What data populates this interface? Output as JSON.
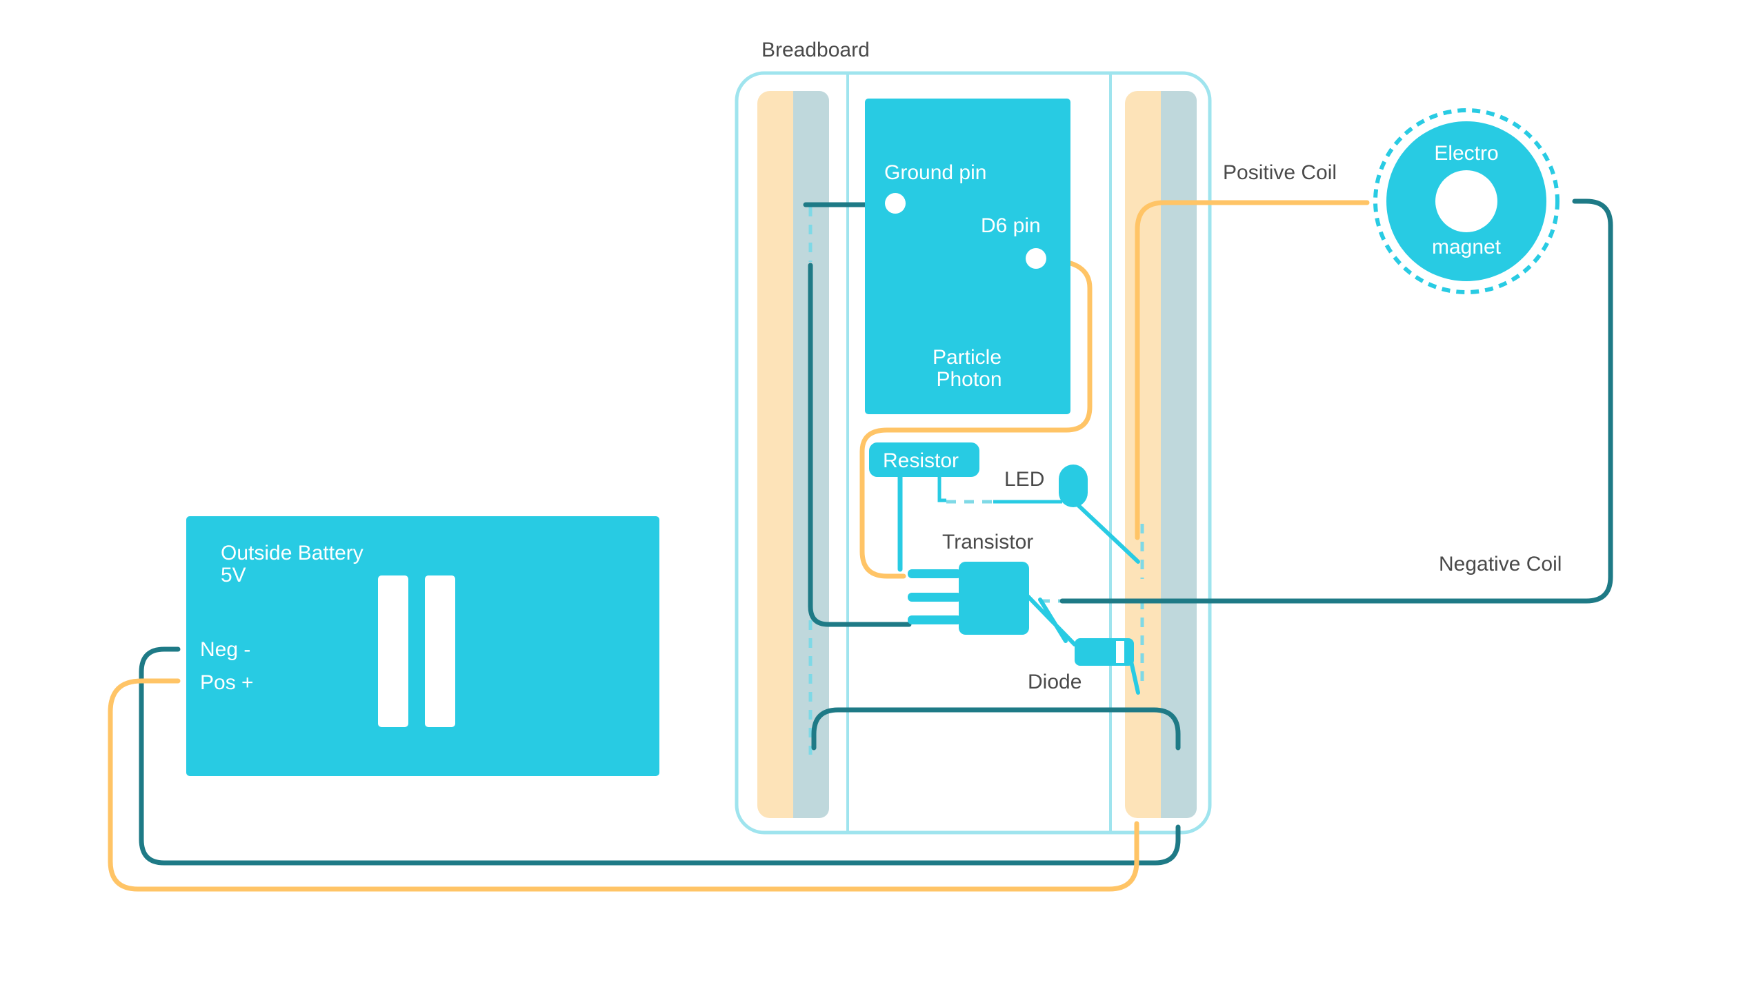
{
  "labels": {
    "breadboard": "Breadboard",
    "ground_pin": "Ground pin",
    "d6_pin": "D6 pin",
    "photon_line1": "Particle",
    "photon_line2": "Photon",
    "resistor": "Resistor",
    "led": "LED",
    "transistor": "Transistor",
    "diode": "Diode",
    "positive_coil": "Positive Coil",
    "negative_coil": "Negative Coil",
    "magnet_line1": "Electro",
    "magnet_line2": "magnet",
    "battery_line1": "Outside Battery",
    "battery_line2": "5V",
    "neg": "Neg -",
    "pos": "Pos +"
  },
  "colors": {
    "component": "#28cbe3",
    "wire_negative": "#1e7a86",
    "wire_positive": "#ffc466",
    "rail_positive": "#fde3b8",
    "rail_negative": "#bfd8dc",
    "breadboard_outline": "#9fe4ee",
    "label_text": "#4a4a4a"
  }
}
